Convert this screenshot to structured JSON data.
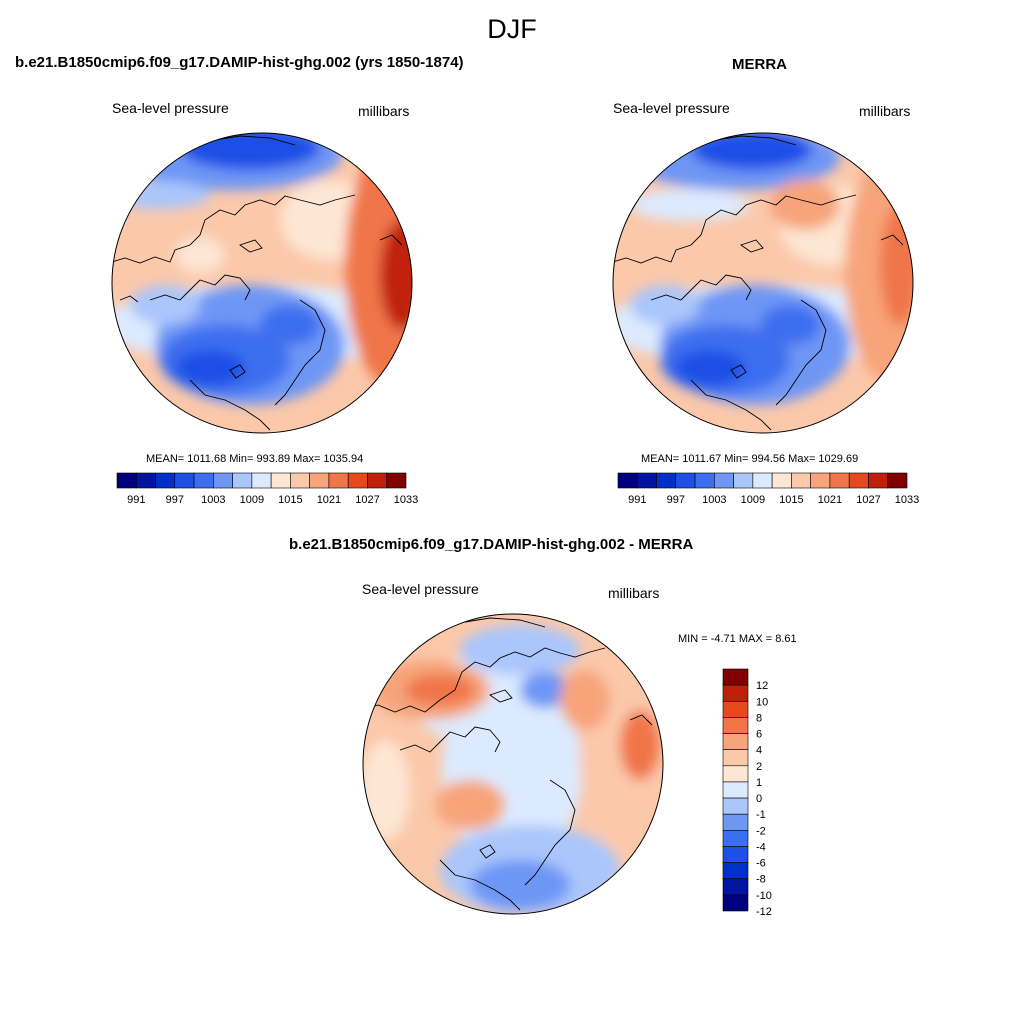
{
  "figure": {
    "title": "DJF"
  },
  "colors": {
    "levels": [
      "#00007f",
      "#0014a0",
      "#0030c8",
      "#1e50e6",
      "#3c6ef0",
      "#6e96f5",
      "#aac6fb",
      "#dceaff",
      "#fde6d4",
      "#fbc8aa",
      "#f7a47a",
      "#f0764a",
      "#e44a1c",
      "#c0200a",
      "#800000"
    ],
    "land_outline": "#000000"
  },
  "panels": [
    {
      "title": "b.e21.B1850cmip6.f09_g17.DAMIP-hist-ghg.002 (yrs 1850-1874)",
      "left_label": "Sea-level pressure",
      "right_label": "millibars",
      "stats": "MEAN= 1011.68  Min= 993.89  Max= 1035.94",
      "colorbar_ticks": [
        "991",
        "997",
        "1003",
        "1009",
        "1015",
        "1021",
        "1027",
        "1033"
      ]
    },
    {
      "title": "MERRA",
      "left_label": "Sea-level pressure",
      "right_label": "millibars",
      "stats": "MEAN= 1011.67  Min= 994.56  Max= 1029.69",
      "colorbar_ticks": [
        "991",
        "997",
        "1003",
        "1009",
        "1015",
        "1021",
        "1027",
        "1033"
      ]
    },
    {
      "title": "b.e21.B1850cmip6.f09_g17.DAMIP-hist-ghg.002 - MERRA",
      "left_label": "Sea-level pressure",
      "right_label": "millibars",
      "stats": "MIN =  -4.71 MAX =   8.61",
      "colorbar_ticks": [
        "12",
        "10",
        "8",
        "6",
        "4",
        "2",
        "1",
        "0",
        "-1",
        "-2",
        "-4",
        "-6",
        "-8",
        "-10",
        "-12"
      ]
    }
  ]
}
